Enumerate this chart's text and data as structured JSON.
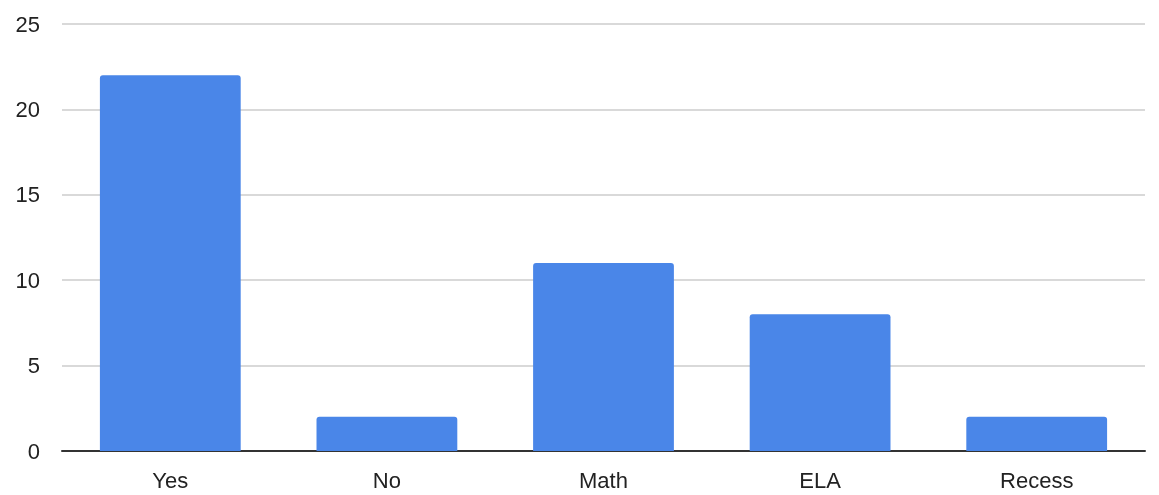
{
  "chart_data": {
    "type": "bar",
    "categories": [
      "Yes",
      "No",
      "Math",
      "ELA",
      "Recess"
    ],
    "values": [
      22,
      2,
      11,
      8,
      2
    ],
    "color": "#4a86e8",
    "ylim": [
      0,
      25
    ],
    "yticks": [
      0,
      5,
      10,
      15,
      20,
      25
    ],
    "grid": "y"
  }
}
